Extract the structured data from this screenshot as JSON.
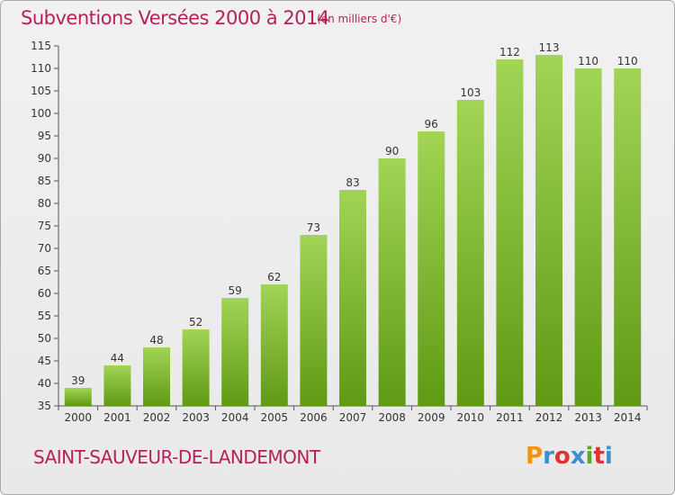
{
  "header": {
    "title": "Subventions Versées 2000 à 2014",
    "subtitle": "(en milliers d'€)"
  },
  "footer": {
    "commune": "SAINT-SAUVEUR-DE-LANDEMONT",
    "logo_text": "Proxiti"
  },
  "colors": {
    "title": "#b5225a",
    "bar_light": "#a2d456",
    "bar_dark": "#5f9a14",
    "logo": [
      "#f2920f",
      "#3c8fce",
      "#e0332f",
      "#3c8fce",
      "#5aa829",
      "#e0332f",
      "#3c8fce"
    ]
  },
  "chart_data": {
    "type": "bar",
    "categories": [
      "2000",
      "2001",
      "2002",
      "2003",
      "2004",
      "2005",
      "2006",
      "2007",
      "2008",
      "2009",
      "2010",
      "2011",
      "2012",
      "2013",
      "2014"
    ],
    "values": [
      39,
      44,
      48,
      52,
      59,
      62,
      73,
      83,
      90,
      96,
      103,
      112,
      113,
      110,
      110
    ],
    "y_ticks": [
      35,
      40,
      45,
      50,
      55,
      60,
      65,
      70,
      75,
      80,
      85,
      90,
      95,
      100,
      105,
      110,
      115
    ],
    "ylim": [
      35,
      115
    ],
    "grid": false,
    "legend": "none"
  }
}
